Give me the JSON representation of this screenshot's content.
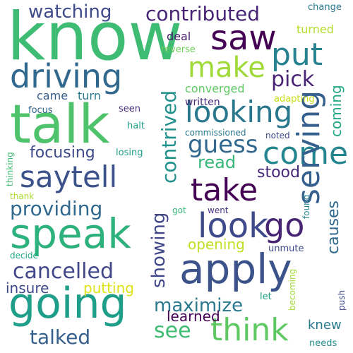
{
  "word_cloud": {
    "words": [
      {
        "text": "know",
        "color": "#3fbc73"
      },
      {
        "text": "talk",
        "color": "#4fc36b"
      },
      {
        "text": "saw",
        "color": "#440154"
      },
      {
        "text": "speak",
        "color": "#2db27d"
      },
      {
        "text": "apply",
        "color": "#3b528b"
      },
      {
        "text": "going",
        "color": "#1f9e89"
      },
      {
        "text": "driving",
        "color": "#31688e"
      },
      {
        "text": "put",
        "color": "#26828e"
      },
      {
        "text": "make",
        "color": "#a0da39"
      },
      {
        "text": "contributed",
        "color": "#482475"
      },
      {
        "text": "looking",
        "color": "#2a788e"
      },
      {
        "text": "come",
        "color": "#25858e"
      },
      {
        "text": "saytell",
        "color": "#3b528b"
      },
      {
        "text": "take",
        "color": "#440154"
      },
      {
        "text": "look",
        "color": "#3e4a89"
      },
      {
        "text": "think",
        "color": "#5ec962"
      },
      {
        "text": "serving",
        "color": "#355f8d"
      },
      {
        "text": "go",
        "color": "#482475"
      },
      {
        "text": "watching",
        "color": "#3e4a89"
      },
      {
        "text": "guess",
        "color": "#31688e"
      },
      {
        "text": "contrived",
        "color": "#21918c"
      },
      {
        "text": "showing",
        "color": "#404688"
      },
      {
        "text": "providing",
        "color": "#31688e"
      },
      {
        "text": "cancelled",
        "color": "#404688"
      },
      {
        "text": "maximize",
        "color": "#2a788e"
      },
      {
        "text": "talked",
        "color": "#355f8d"
      },
      {
        "text": "see",
        "color": "#3fbc73"
      },
      {
        "text": "pick",
        "color": "#482475"
      },
      {
        "text": "focusing",
        "color": "#3e4a89"
      },
      {
        "text": "read",
        "color": "#35b779"
      },
      {
        "text": "stood",
        "color": "#482878"
      },
      {
        "text": "opening",
        "color": "#c2df23"
      },
      {
        "text": "causes",
        "color": "#31688e"
      },
      {
        "text": "coming",
        "color": "#22a884"
      },
      {
        "text": "insure",
        "color": "#3e4a89"
      },
      {
        "text": "putting",
        "color": "#dde318"
      },
      {
        "text": "learned",
        "color": "#440154"
      },
      {
        "text": "knew",
        "color": "#2a788e"
      },
      {
        "text": "converged",
        "color": "#5ec962"
      },
      {
        "text": "turned",
        "color": "#b5de2b"
      },
      {
        "text": "deal",
        "color": "#481a6c"
      },
      {
        "text": "came",
        "color": "#355f8d"
      },
      {
        "text": "turn",
        "color": "#2a788e"
      },
      {
        "text": "written",
        "color": "#482878"
      },
      {
        "text": "reverse",
        "color": "#6ccd5a"
      },
      {
        "text": "adapting",
        "color": "#c8e020"
      },
      {
        "text": "change",
        "color": "#2a788e"
      },
      {
        "text": "focus",
        "color": "#31688e"
      },
      {
        "text": "seen",
        "color": "#472c7a"
      },
      {
        "text": "halt",
        "color": "#1fa188"
      },
      {
        "text": "commissioned",
        "color": "#2a788e"
      },
      {
        "text": "noted",
        "color": "#404688"
      },
      {
        "text": "losing",
        "color": "#1f9e89"
      },
      {
        "text": "thinking",
        "color": "#3fbc73"
      },
      {
        "text": "thank",
        "color": "#addc30"
      },
      {
        "text": "found",
        "color": "#26828e"
      },
      {
        "text": "got",
        "color": "#35b779"
      },
      {
        "text": "went",
        "color": "#46327e"
      },
      {
        "text": "decide",
        "color": "#22a884"
      },
      {
        "text": "unmute",
        "color": "#3e4a89"
      },
      {
        "text": "let",
        "color": "#1f9e89"
      },
      {
        "text": "becoming",
        "color": "#a5db36"
      },
      {
        "text": "push",
        "color": "#3e4a89"
      },
      {
        "text": "needs",
        "color": "#21918c"
      }
    ]
  }
}
